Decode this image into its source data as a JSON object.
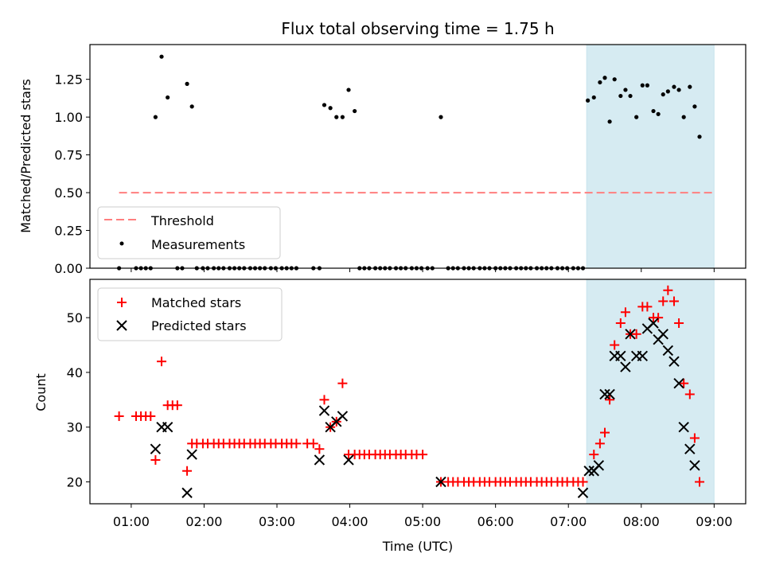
{
  "chart_data": [
    {
      "type": "scatter",
      "title": "Flux total observing time = 1.75 h",
      "xlabel": "",
      "ylabel": "Matched/Predicted stars",
      "xlim": [
        "00:26",
        "09:26"
      ],
      "ylim": [
        0,
        1.48
      ],
      "yticks": [
        "0.00",
        "0.25",
        "0.50",
        "0.75",
        "1.00",
        "1.25"
      ],
      "shaded_span": [
        "07:15",
        "09:00"
      ],
      "grid": false,
      "legend_position": "lower-left",
      "threshold": {
        "name": "Threshold",
        "value": 0.5,
        "x_start": "00:50",
        "x_end": "09:00",
        "color": "#ff7f7f",
        "style": "dashed"
      },
      "series": [
        {
          "name": "Measurements",
          "marker": "dot",
          "color": "#000000",
          "points": [
            [
              "00:50",
              0
            ],
            [
              "01:04",
              0
            ],
            [
              "01:08",
              0
            ],
            [
              "01:12",
              0
            ],
            [
              "01:16",
              0
            ],
            [
              "01:20",
              1.0
            ],
            [
              "01:25",
              1.4
            ],
            [
              "01:30",
              1.13
            ],
            [
              "01:38",
              0
            ],
            [
              "01:42",
              0
            ],
            [
              "01:46",
              1.22
            ],
            [
              "01:50",
              1.07
            ],
            [
              "01:54",
              0
            ],
            [
              "01:59",
              0
            ],
            [
              "02:03",
              0
            ],
            [
              "02:08",
              0
            ],
            [
              "02:12",
              0
            ],
            [
              "02:16",
              0
            ],
            [
              "02:21",
              0
            ],
            [
              "02:25",
              0
            ],
            [
              "02:29",
              0
            ],
            [
              "02:33",
              0
            ],
            [
              "02:38",
              0
            ],
            [
              "02:42",
              0
            ],
            [
              "02:46",
              0
            ],
            [
              "02:50",
              0
            ],
            [
              "02:55",
              0
            ],
            [
              "02:59",
              0
            ],
            [
              "03:04",
              0
            ],
            [
              "03:08",
              0
            ],
            [
              "03:12",
              0
            ],
            [
              "03:16",
              0
            ],
            [
              "03:30",
              0
            ],
            [
              "03:35",
              0
            ],
            [
              "03:39",
              1.08
            ],
            [
              "03:44",
              1.06
            ],
            [
              "03:49",
              1.0
            ],
            [
              "03:54",
              1.0
            ],
            [
              "03:59",
              1.18
            ],
            [
              "04:04",
              1.04
            ],
            [
              "04:08",
              0
            ],
            [
              "04:12",
              0
            ],
            [
              "04:16",
              0
            ],
            [
              "04:21",
              0
            ],
            [
              "04:25",
              0
            ],
            [
              "04:29",
              0
            ],
            [
              "04:33",
              0
            ],
            [
              "04:38",
              0
            ],
            [
              "04:42",
              0
            ],
            [
              "04:46",
              0
            ],
            [
              "04:51",
              0
            ],
            [
              "04:55",
              0
            ],
            [
              "04:59",
              0
            ],
            [
              "05:04",
              0
            ],
            [
              "05:08",
              0
            ],
            [
              "05:15",
              1.0
            ],
            [
              "05:21",
              0
            ],
            [
              "05:25",
              0
            ],
            [
              "05:29",
              0
            ],
            [
              "05:34",
              0
            ],
            [
              "05:38",
              0
            ],
            [
              "05:42",
              0
            ],
            [
              "05:47",
              0
            ],
            [
              "05:51",
              0
            ],
            [
              "05:55",
              0
            ],
            [
              "06:00",
              0
            ],
            [
              "06:04",
              0
            ],
            [
              "06:08",
              0
            ],
            [
              "06:12",
              0
            ],
            [
              "06:17",
              0
            ],
            [
              "06:21",
              0
            ],
            [
              "06:25",
              0
            ],
            [
              "06:29",
              0
            ],
            [
              "06:34",
              0
            ],
            [
              "06:38",
              0
            ],
            [
              "06:42",
              0
            ],
            [
              "06:46",
              0
            ],
            [
              "06:51",
              0
            ],
            [
              "06:55",
              0
            ],
            [
              "06:59",
              0
            ],
            [
              "07:04",
              0
            ],
            [
              "07:08",
              0
            ],
            [
              "07:12",
              0
            ],
            [
              "07:16",
              1.11
            ],
            [
              "07:21",
              1.13
            ],
            [
              "07:26",
              1.23
            ],
            [
              "07:30",
              1.26
            ],
            [
              "07:34",
              0.97
            ],
            [
              "07:38",
              1.25
            ],
            [
              "07:43",
              1.14
            ],
            [
              "07:47",
              1.18
            ],
            [
              "07:51",
              1.14
            ],
            [
              "07:56",
              1.0
            ],
            [
              "08:01",
              1.21
            ],
            [
              "08:05",
              1.21
            ],
            [
              "08:10",
              1.04
            ],
            [
              "08:14",
              1.02
            ],
            [
              "08:18",
              1.15
            ],
            [
              "08:22",
              1.17
            ],
            [
              "08:27",
              1.2
            ],
            [
              "08:31",
              1.18
            ],
            [
              "08:35",
              1.0
            ],
            [
              "08:40",
              1.2
            ],
            [
              "08:44",
              1.07
            ],
            [
              "08:48",
              0.87
            ]
          ]
        }
      ]
    },
    {
      "type": "scatter",
      "title": "",
      "xlabel": "Time (UTC)",
      "ylabel": "Count",
      "xlim": [
        "00:26",
        "09:26"
      ],
      "ylim": [
        16,
        57
      ],
      "yticks": [
        "20",
        "30",
        "40",
        "50"
      ],
      "xticks": [
        "01:00",
        "02:00",
        "03:00",
        "04:00",
        "05:00",
        "06:00",
        "07:00",
        "08:00",
        "09:00"
      ],
      "shaded_span": [
        "07:15",
        "09:00"
      ],
      "grid": false,
      "legend_position": "upper-left",
      "series": [
        {
          "name": "Matched stars",
          "marker": "plus",
          "color": "#ff0000",
          "points": [
            [
              "00:50",
              32
            ],
            [
              "01:04",
              32
            ],
            [
              "01:08",
              32
            ],
            [
              "01:12",
              32
            ],
            [
              "01:16",
              32
            ],
            [
              "01:20",
              24
            ],
            [
              "01:25",
              42
            ],
            [
              "01:30",
              34
            ],
            [
              "01:34",
              34
            ],
            [
              "01:38",
              34
            ],
            [
              "01:46",
              22
            ],
            [
              "01:50",
              27
            ],
            [
              "01:54",
              27
            ],
            [
              "01:59",
              27
            ],
            [
              "02:03",
              27
            ],
            [
              "02:08",
              27
            ],
            [
              "02:12",
              27
            ],
            [
              "02:16",
              27
            ],
            [
              "02:21",
              27
            ],
            [
              "02:25",
              27
            ],
            [
              "02:29",
              27
            ],
            [
              "02:33",
              27
            ],
            [
              "02:38",
              27
            ],
            [
              "02:42",
              27
            ],
            [
              "02:46",
              27
            ],
            [
              "02:50",
              27
            ],
            [
              "02:55",
              27
            ],
            [
              "02:59",
              27
            ],
            [
              "03:04",
              27
            ],
            [
              "03:08",
              27
            ],
            [
              "03:12",
              27
            ],
            [
              "03:16",
              27
            ],
            [
              "03:25",
              27
            ],
            [
              "03:30",
              27
            ],
            [
              "03:35",
              26
            ],
            [
              "03:39",
              35
            ],
            [
              "03:44",
              30
            ],
            [
              "03:49",
              31
            ],
            [
              "03:54",
              38
            ],
            [
              "03:59",
              25
            ],
            [
              "04:04",
              25
            ],
            [
              "04:08",
              25
            ],
            [
              "04:12",
              25
            ],
            [
              "04:16",
              25
            ],
            [
              "04:21",
              25
            ],
            [
              "04:25",
              25
            ],
            [
              "04:29",
              25
            ],
            [
              "04:33",
              25
            ],
            [
              "04:38",
              25
            ],
            [
              "04:42",
              25
            ],
            [
              "04:46",
              25
            ],
            [
              "04:51",
              25
            ],
            [
              "04:55",
              25
            ],
            [
              "05:00",
              25
            ],
            [
              "05:15",
              20
            ],
            [
              "05:21",
              20
            ],
            [
              "05:25",
              20
            ],
            [
              "05:29",
              20
            ],
            [
              "05:34",
              20
            ],
            [
              "05:38",
              20
            ],
            [
              "05:42",
              20
            ],
            [
              "05:47",
              20
            ],
            [
              "05:51",
              20
            ],
            [
              "05:55",
              20
            ],
            [
              "06:00",
              20
            ],
            [
              "06:04",
              20
            ],
            [
              "06:08",
              20
            ],
            [
              "06:12",
              20
            ],
            [
              "06:17",
              20
            ],
            [
              "06:21",
              20
            ],
            [
              "06:25",
              20
            ],
            [
              "06:29",
              20
            ],
            [
              "06:34",
              20
            ],
            [
              "06:38",
              20
            ],
            [
              "06:42",
              20
            ],
            [
              "06:46",
              20
            ],
            [
              "06:51",
              20
            ],
            [
              "06:55",
              20
            ],
            [
              "06:59",
              20
            ],
            [
              "07:04",
              20
            ],
            [
              "07:08",
              20
            ],
            [
              "07:12",
              20
            ],
            [
              "07:21",
              25
            ],
            [
              "07:26",
              27
            ],
            [
              "07:30",
              29
            ],
            [
              "07:34",
              35
            ],
            [
              "07:38",
              45
            ],
            [
              "07:43",
              49
            ],
            [
              "07:47",
              51
            ],
            [
              "07:51",
              47
            ],
            [
              "07:56",
              47
            ],
            [
              "08:01",
              52
            ],
            [
              "08:05",
              52
            ],
            [
              "08:10",
              50
            ],
            [
              "08:14",
              50
            ],
            [
              "08:18",
              53
            ],
            [
              "08:22",
              55
            ],
            [
              "08:27",
              53
            ],
            [
              "08:31",
              49
            ],
            [
              "08:35",
              38
            ],
            [
              "08:40",
              36
            ],
            [
              "08:44",
              28
            ],
            [
              "08:48",
              20
            ]
          ]
        },
        {
          "name": "Predicted stars",
          "marker": "x",
          "color": "#000000",
          "points": [
            [
              "01:20",
              26
            ],
            [
              "01:25",
              30
            ],
            [
              "01:30",
              30
            ],
            [
              "01:46",
              18
            ],
            [
              "01:50",
              25
            ],
            [
              "03:35",
              24
            ],
            [
              "03:39",
              33
            ],
            [
              "03:44",
              30
            ],
            [
              "03:49",
              31
            ],
            [
              "03:54",
              32
            ],
            [
              "03:59",
              24
            ],
            [
              "05:15",
              20
            ],
            [
              "07:12",
              18
            ],
            [
              "07:17",
              22
            ],
            [
              "07:21",
              22
            ],
            [
              "07:25",
              23
            ],
            [
              "07:30",
              36
            ],
            [
              "07:34",
              36
            ],
            [
              "07:38",
              43
            ],
            [
              "07:43",
              43
            ],
            [
              "07:47",
              41
            ],
            [
              "07:51",
              47
            ],
            [
              "07:56",
              43
            ],
            [
              "08:01",
              43
            ],
            [
              "08:05",
              48
            ],
            [
              "08:10",
              49
            ],
            [
              "08:14",
              46
            ],
            [
              "08:18",
              47
            ],
            [
              "08:22",
              44
            ],
            [
              "08:27",
              42
            ],
            [
              "08:31",
              38
            ],
            [
              "08:35",
              30
            ],
            [
              "08:40",
              26
            ],
            [
              "08:44",
              23
            ]
          ]
        }
      ]
    }
  ]
}
